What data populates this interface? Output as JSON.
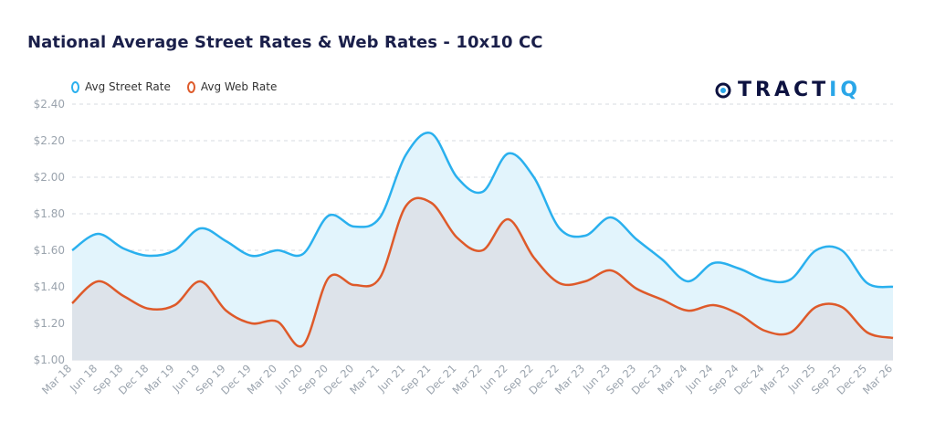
{
  "title": "National Average Street Rates & Web Rates - 10x10 CC",
  "logo": {
    "text_main": "TRACT",
    "text_accent": "IQ"
  },
  "colors": {
    "street": "#2ab0ee",
    "street_fill": "#e2f4fc",
    "web": "#de5a2a",
    "web_fill": "#dde3ea",
    "grid": "#d7dbe0",
    "axis_text": "#9aa3ad"
  },
  "chart_data": {
    "type": "area",
    "title": "National Average Street Rates & Web Rates - 10x10 CC",
    "xlabel": "",
    "ylabel": "",
    "ylim": [
      1.0,
      2.4
    ],
    "yticks": [
      "$2.40",
      "$2.20",
      "$2.00",
      "$1.80",
      "$1.60",
      "$1.40",
      "$1.20",
      "$1.00"
    ],
    "ytick_values": [
      2.4,
      2.2,
      2.0,
      1.8,
      1.6,
      1.4,
      1.2,
      1.0
    ],
    "grid": true,
    "legend_position": "top-left",
    "x": [
      "Mar 18",
      "Jun 18",
      "Sep 18",
      "Dec 18",
      "Mar 19",
      "Jun 19",
      "Sep 19",
      "Dec 19",
      "Mar 20",
      "Jun 20",
      "Sep 20",
      "Dec 20",
      "Mar 21",
      "Jun 21",
      "Sep 21",
      "Dec 21",
      "Mar 22",
      "Jun 22",
      "Sep 22",
      "Dec 22",
      "Mar 23",
      "Jun 23",
      "Sep 23",
      "Dec 23",
      "Mar 24",
      "Jun 24",
      "Sep 24",
      "Dec 24",
      "Mar 25",
      "Jun 25",
      "Sep 25",
      "Dec 25",
      "Mar 26"
    ],
    "series": [
      {
        "name": "Avg Street Rate",
        "values": [
          1.6,
          1.69,
          1.61,
          1.57,
          1.6,
          1.72,
          1.65,
          1.57,
          1.6,
          1.58,
          1.79,
          1.73,
          1.78,
          2.12,
          2.24,
          2.0,
          1.92,
          2.13,
          2.0,
          1.72,
          1.68,
          1.78,
          1.66,
          1.55,
          1.43,
          1.53,
          1.5,
          1.44,
          1.44,
          1.6,
          1.6,
          1.42,
          1.4
        ]
      },
      {
        "name": "Avg Web Rate",
        "values": [
          1.31,
          1.43,
          1.35,
          1.28,
          1.3,
          1.43,
          1.27,
          1.2,
          1.21,
          1.08,
          1.45,
          1.41,
          1.45,
          1.84,
          1.86,
          1.67,
          1.6,
          1.77,
          1.56,
          1.42,
          1.43,
          1.49,
          1.39,
          1.33,
          1.27,
          1.3,
          1.25,
          1.16,
          1.15,
          1.29,
          1.29,
          1.15,
          1.12
        ]
      }
    ]
  }
}
